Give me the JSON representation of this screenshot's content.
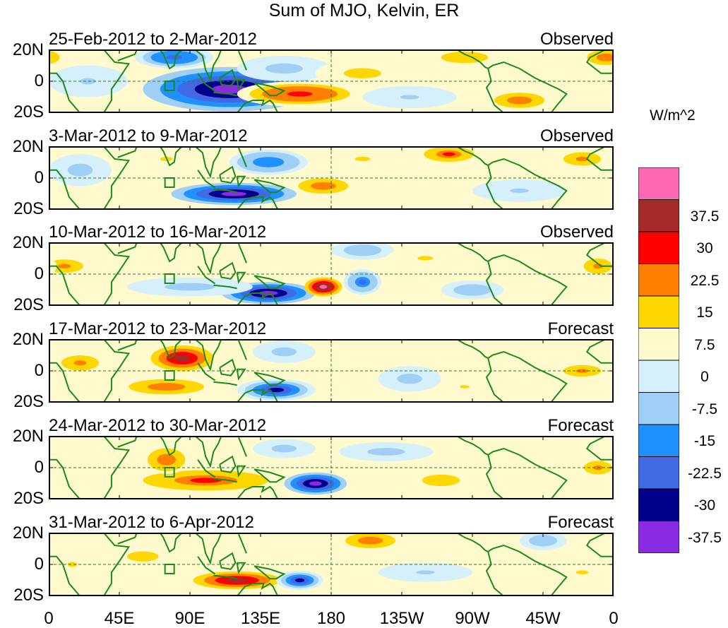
{
  "title": "Sum of MJO, Kelvin, ER",
  "unit": "W/m^2",
  "latitude_labels": [
    "20N",
    "0",
    "20S"
  ],
  "longitude_labels": [
    "0",
    "45E",
    "90E",
    "135E",
    "180",
    "135W",
    "90W",
    "45W",
    "0"
  ],
  "colorbar": {
    "colors": [
      "#8a2be2",
      "#00008b",
      "#4169e1",
      "#1e90ff",
      "#a0cff5",
      "#d5f0fa",
      "#fffacd",
      "#ffd700",
      "#ff7f00",
      "#ff0000",
      "#a52a2a",
      "#ff69b4"
    ],
    "labels": [
      "-37.5",
      "-30",
      "-22.5",
      "-15",
      "-7.5",
      "0",
      "7.5",
      "15",
      "22.5",
      "30",
      "37.5"
    ]
  },
  "panels": [
    {
      "date_range": "25-Feb-2012 to 2-Mar-2012",
      "tag": "Observed",
      "anomalies": [
        {
          "lon": 115,
          "lat": -5,
          "dlon": 55,
          "dlat": 14,
          "value": -38
        },
        {
          "lon": 80,
          "lat": 15,
          "dlon": 25,
          "dlat": 7,
          "value": -28
        },
        {
          "lon": 150,
          "lat": 8,
          "dlon": 30,
          "dlat": 8,
          "value": -10
        },
        {
          "lon": 160,
          "lat": -8,
          "dlon": 40,
          "dlat": 8,
          "value": 25
        },
        {
          "lon": 200,
          "lat": 5,
          "dlon": 30,
          "dlat": 8,
          "value": 10
        },
        {
          "lon": 230,
          "lat": -10,
          "dlon": 30,
          "dlat": 7,
          "value": -9
        },
        {
          "lon": 265,
          "lat": 15,
          "dlon": 25,
          "dlat": 6,
          "value": 14
        },
        {
          "lon": 300,
          "lat": -12,
          "dlon": 20,
          "dlat": 6,
          "value": 20
        },
        {
          "lon": 355,
          "lat": 15,
          "dlon": 15,
          "dlat": 6,
          "value": 22
        },
        {
          "lon": 25,
          "lat": 0,
          "dlon": 25,
          "dlat": 10,
          "value": -8
        }
      ]
    },
    {
      "date_range": "3-Mar-2012 to 9-Mar-2012",
      "tag": "Observed",
      "anomalies": [
        {
          "lon": 118,
          "lat": -10,
          "dlon": 40,
          "dlat": 7,
          "value": -40
        },
        {
          "lon": 140,
          "lat": 10,
          "dlon": 25,
          "dlat": 8,
          "value": -20
        },
        {
          "lon": 175,
          "lat": -5,
          "dlon": 20,
          "dlat": 6,
          "value": 22
        },
        {
          "lon": 255,
          "lat": 15,
          "dlon": 20,
          "dlat": 6,
          "value": 24
        },
        {
          "lon": 200,
          "lat": 12,
          "dlon": 25,
          "dlat": 7,
          "value": 9
        },
        {
          "lon": 340,
          "lat": 12,
          "dlon": 20,
          "dlat": 7,
          "value": 18
        },
        {
          "lon": 20,
          "lat": 5,
          "dlon": 20,
          "dlat": 10,
          "value": -10
        },
        {
          "lon": 75,
          "lat": 12,
          "dlon": 20,
          "dlat": 7,
          "value": 9
        },
        {
          "lon": 300,
          "lat": -8,
          "dlon": 30,
          "dlat": 7,
          "value": -9
        }
      ]
    },
    {
      "date_range": "10-Mar-2012 to 16-Mar-2012",
      "tag": "Observed",
      "anomalies": [
        {
          "lon": 140,
          "lat": -12,
          "dlon": 30,
          "dlat": 7,
          "value": -40
        },
        {
          "lon": 175,
          "lat": -8,
          "dlon": 12,
          "dlat": 6,
          "value": 38
        },
        {
          "lon": 200,
          "lat": -5,
          "dlon": 12,
          "dlat": 8,
          "value": -25
        },
        {
          "lon": 200,
          "lat": 15,
          "dlon": 20,
          "dlat": 6,
          "value": -15
        },
        {
          "lon": 10,
          "lat": 5,
          "dlon": 20,
          "dlat": 7,
          "value": 18
        },
        {
          "lon": 90,
          "lat": -8,
          "dlon": 40,
          "dlat": 6,
          "value": -10
        },
        {
          "lon": 270,
          "lat": -10,
          "dlon": 20,
          "dlat": 6,
          "value": -15
        },
        {
          "lon": 350,
          "lat": 5,
          "dlon": 15,
          "dlat": 8,
          "value": 18
        },
        {
          "lon": 240,
          "lat": 10,
          "dlon": 25,
          "dlat": 7,
          "value": 9
        }
      ]
    },
    {
      "date_range": "17-Mar-2012 to 23-Mar-2012",
      "tag": "Forecast",
      "anomalies": [
        {
          "lon": 85,
          "lat": 8,
          "dlon": 25,
          "dlat": 10,
          "value": 30
        },
        {
          "lon": 75,
          "lat": -10,
          "dlon": 30,
          "dlat": 6,
          "value": 22
        },
        {
          "lon": 145,
          "lat": -12,
          "dlon": 25,
          "dlat": 7,
          "value": -36
        },
        {
          "lon": 20,
          "lat": 5,
          "dlon": 20,
          "dlat": 8,
          "value": 18
        },
        {
          "lon": 150,
          "lat": 12,
          "dlon": 20,
          "dlat": 7,
          "value": -10
        },
        {
          "lon": 230,
          "lat": -5,
          "dlon": 20,
          "dlat": 8,
          "value": -12
        },
        {
          "lon": 340,
          "lat": 0,
          "dlon": 20,
          "dlat": 6,
          "value": 16
        },
        {
          "lon": 265,
          "lat": -10,
          "dlon": 15,
          "dlat": 5,
          "value": 9
        }
      ]
    },
    {
      "date_range": "24-Mar-2012 to 30-Mar-2012",
      "tag": "Forecast",
      "anomalies": [
        {
          "lon": 170,
          "lat": -10,
          "dlon": 20,
          "dlat": 7,
          "value": -40
        },
        {
          "lon": 100,
          "lat": -8,
          "dlon": 50,
          "dlat": 8,
          "value": 24
        },
        {
          "lon": 75,
          "lat": 5,
          "dlon": 15,
          "dlat": 9,
          "value": 20
        },
        {
          "lon": 215,
          "lat": 10,
          "dlon": 30,
          "dlat": 6,
          "value": -12
        },
        {
          "lon": 250,
          "lat": -8,
          "dlon": 20,
          "dlat": 6,
          "value": 14
        },
        {
          "lon": 150,
          "lat": 12,
          "dlon": 20,
          "dlat": 6,
          "value": -12
        },
        {
          "lon": 350,
          "lat": 0,
          "dlon": 15,
          "dlat": 7,
          "value": 16
        }
      ]
    },
    {
      "date_range": "31-Mar-2012 to 6-Apr-2012",
      "tag": "Forecast",
      "anomalies": [
        {
          "lon": 120,
          "lat": -10,
          "dlon": 35,
          "dlat": 7,
          "value": 30
        },
        {
          "lon": 160,
          "lat": -10,
          "dlon": 15,
          "dlat": 6,
          "value": -32
        },
        {
          "lon": 205,
          "lat": 15,
          "dlon": 20,
          "dlat": 6,
          "value": 22
        },
        {
          "lon": 60,
          "lat": 5,
          "dlon": 25,
          "dlat": 8,
          "value": 12
        },
        {
          "lon": 315,
          "lat": 15,
          "dlon": 15,
          "dlat": 6,
          "value": -14
        },
        {
          "lon": 15,
          "lat": 0,
          "dlon": 15,
          "dlat": 8,
          "value": 8
        },
        {
          "lon": 240,
          "lat": -5,
          "dlon": 30,
          "dlat": 6,
          "value": -9
        },
        {
          "lon": 340,
          "lat": -5,
          "dlon": 20,
          "dlat": 6,
          "value": 9
        }
      ]
    }
  ]
}
